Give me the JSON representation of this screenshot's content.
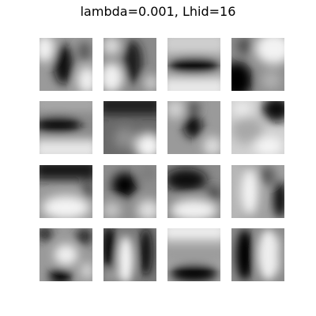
{
  "figure": {
    "title": "lambda=0.001, Lhid=16"
  },
  "filters": [
    {
      "id": 1,
      "pattern": "vertical dark blob, center-left"
    },
    {
      "id": 2,
      "pattern": "diagonal dark band, bright lower-left"
    },
    {
      "id": 3,
      "pattern": "horizontal dark band, middle"
    },
    {
      "id": 4,
      "pattern": "dark bottom-left, bright top-right"
    },
    {
      "id": 5,
      "pattern": "horizontal dark band, left-middle"
    },
    {
      "id": 6,
      "pattern": "dark top, bright bottom-right"
    },
    {
      "id": 7,
      "pattern": "dark center blob"
    },
    {
      "id": 8,
      "pattern": "dark top-right corner"
    },
    {
      "id": 9,
      "pattern": "dark top, bright bottom"
    },
    {
      "id": 10,
      "pattern": "dark center-left blob"
    },
    {
      "id": 11,
      "pattern": "dark upper band, bright bottom"
    },
    {
      "id": 12,
      "pattern": "bright left-center vertical, dark right"
    },
    {
      "id": 13,
      "pattern": "dark corners, bright center cross"
    },
    {
      "id": 14,
      "pattern": "bright vertical center stripe, dark sides"
    },
    {
      "id": 15,
      "pattern": "bright top, dark bottom band"
    },
    {
      "id": 16,
      "pattern": "dark left vertical, bright right"
    }
  ]
}
